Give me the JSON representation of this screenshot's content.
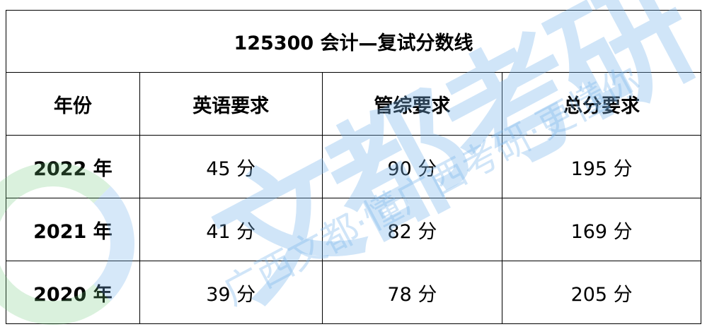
{
  "table": {
    "title": "125300 会计—复试分数线",
    "headers": [
      "年份",
      "英语要求",
      "管综要求",
      "总分要求"
    ],
    "rows": [
      [
        "2022 年",
        "45 分",
        "90 分",
        "195 分"
      ],
      [
        "2021 年",
        "41 分",
        "82 分",
        "169 分"
      ],
      [
        "2020 年",
        "39 分",
        "78 分",
        "205 分"
      ]
    ]
  },
  "watermark": {
    "brand": "文都考研",
    "slogan": "广西文都·懂广西考研·更懂你",
    "colors": {
      "blue": "#78b4eb",
      "green": "#6ec878"
    }
  }
}
